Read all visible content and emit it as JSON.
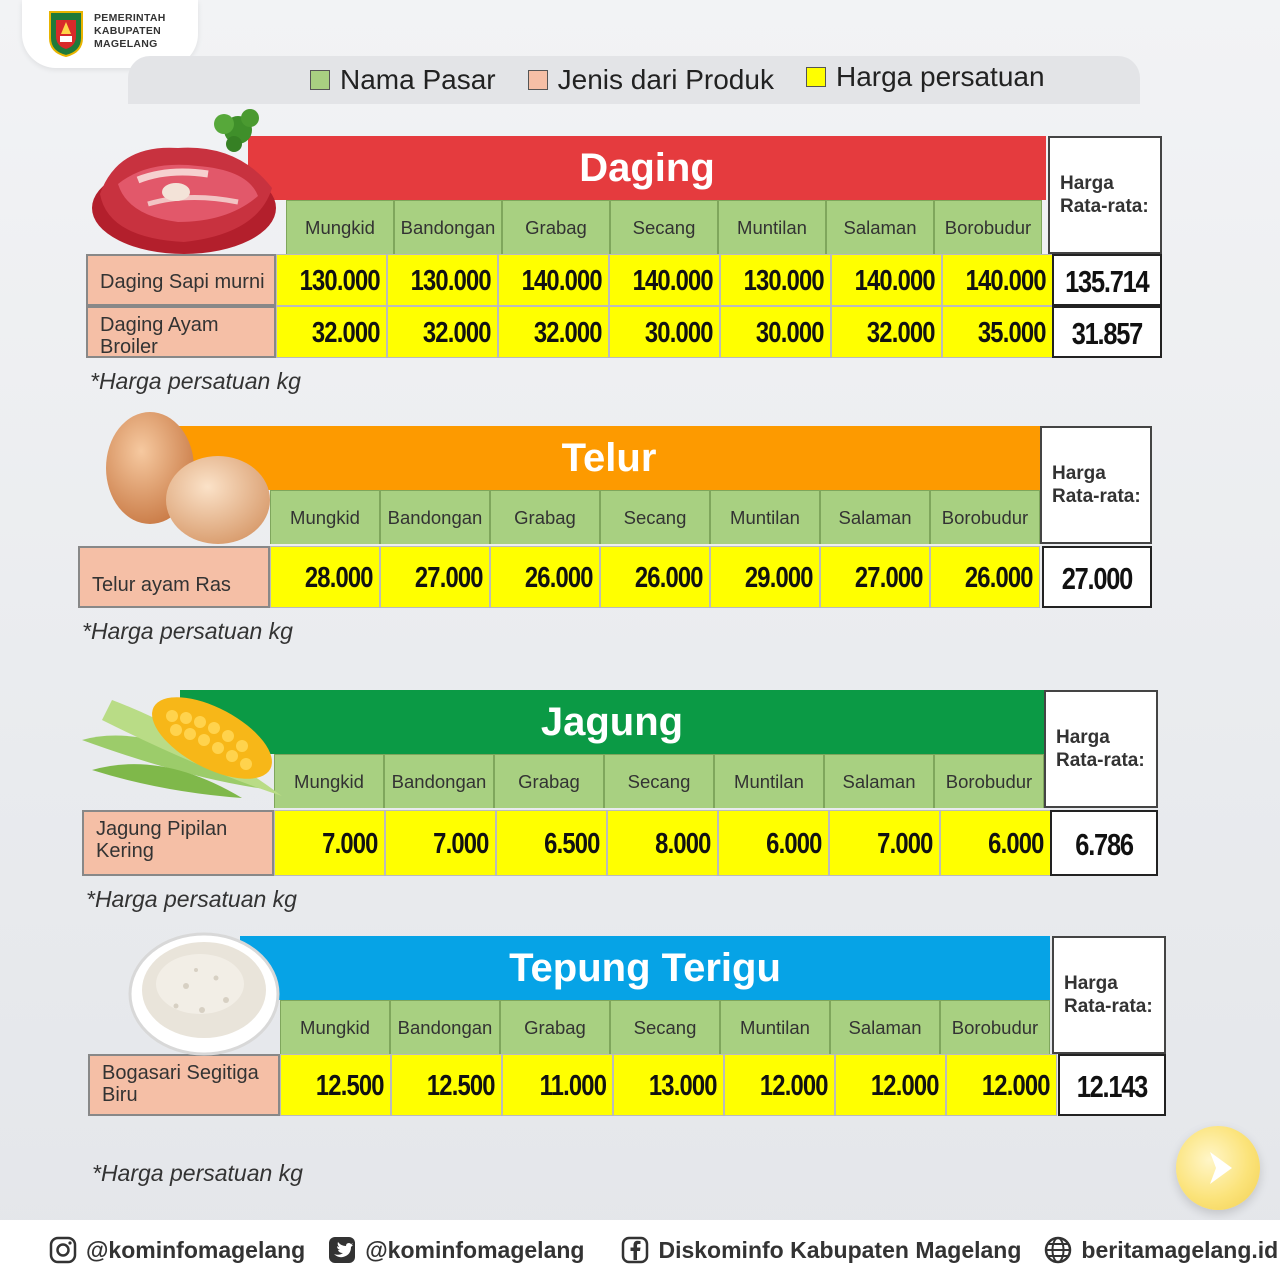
{
  "header": {
    "org_line1": "PEMERINTAH",
    "org_line2": "KABUPATEN",
    "org_line3": "MAGELANG"
  },
  "legend": [
    {
      "label": "Nama Pasar",
      "color": "#a8d081"
    },
    {
      "label": "Jenis dari Produk",
      "color": "#f5bfa6"
    },
    {
      "label": "Harga persatuan",
      "color": "#ffff00"
    }
  ],
  "sections": [
    {
      "title": "Daging",
      "color": "#e53b3e",
      "avg_label_1": "Harga",
      "avg_label_2": "Rata-rata:",
      "markets": [
        "Mungkid",
        "Bandongan",
        "Grabag",
        "Secang",
        "Muntilan",
        "Salaman",
        "Borobudur"
      ],
      "rows": [
        {
          "product_1": "Daging Sapi murni",
          "product_2": "",
          "prices": [
            "130.000",
            "130.000",
            "140.000",
            "140.000",
            "130.000",
            "140.000",
            "140.000"
          ],
          "average": "135.714"
        },
        {
          "product_1": "Daging Ayam",
          "product_2": "Broiler",
          "prices": [
            "32.000",
            "32.000",
            "32.000",
            "30.000",
            "30.000",
            "32.000",
            "35.000"
          ],
          "average": "31.857"
        }
      ],
      "note": "*Harga persatuan kg",
      "illustration": "meat-icon"
    },
    {
      "title": "Telur",
      "color": "#fd9a00",
      "avg_label_1": "Harga",
      "avg_label_2": "Rata-rata:",
      "markets": [
        "Mungkid",
        "Bandongan",
        "Grabag",
        "Secang",
        "Muntilan",
        "Salaman",
        "Borobudur"
      ],
      "rows": [
        {
          "product_1": "Telur ayam Ras",
          "product_2": "",
          "prices": [
            "28.000",
            "27.000",
            "26.000",
            "26.000",
            "29.000",
            "27.000",
            "26.000"
          ],
          "average": "27.000"
        }
      ],
      "note": "*Harga persatuan kg",
      "illustration": "egg-icon"
    },
    {
      "title": "Jagung",
      "color": "#0b9a45",
      "avg_label_1": "Harga",
      "avg_label_2": "Rata-rata:",
      "markets": [
        "Mungkid",
        "Bandongan",
        "Grabag",
        "Secang",
        "Muntilan",
        "Salaman",
        "Borobudur"
      ],
      "rows": [
        {
          "product_1": "Jagung Pipilan",
          "product_2": "Kering",
          "prices": [
            "7.000",
            "7.000",
            "6.500",
            "8.000",
            "6.000",
            "7.000",
            "6.000"
          ],
          "average": "6.786"
        }
      ],
      "note": "*Harga persatuan kg",
      "illustration": "corn-icon"
    },
    {
      "title": "Tepung Terigu",
      "color": "#06a3e6",
      "avg_label_1": "Harga",
      "avg_label_2": "Rata-rata:",
      "markets": [
        "Mungkid",
        "Bandongan",
        "Grabag",
        "Secang",
        "Muntilan",
        "Salaman",
        "Borobudur"
      ],
      "rows": [
        {
          "product_1": "Bogasari Segitiga",
          "product_2": "Biru",
          "prices": [
            "12.500",
            "12.500",
            "11.000",
            "13.000",
            "12.000",
            "12.000",
            "12.000"
          ],
          "average": "12.143"
        }
      ],
      "note": "*Harga persatuan kg",
      "illustration": "flour-bowl-icon"
    }
  ],
  "footer": [
    {
      "icon": "instagram-icon",
      "label": "@kominfomagelang"
    },
    {
      "icon": "twitter-icon",
      "label": "@kominfomagelang"
    },
    {
      "icon": "facebook-icon",
      "label": "Diskominfo Kabupaten Magelang"
    },
    {
      "icon": "globe-icon",
      "label": "beritamagelang.id"
    }
  ]
}
